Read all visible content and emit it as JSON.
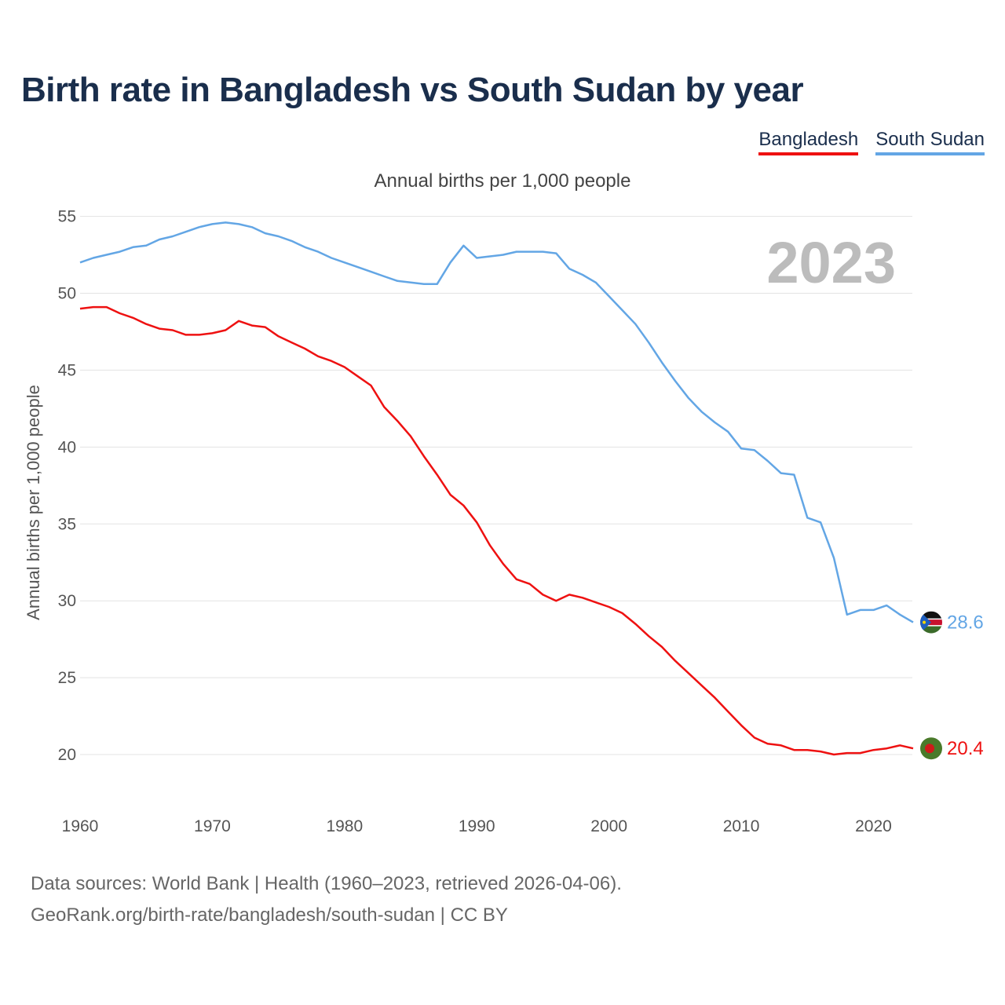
{
  "title": "Birth rate in Bangladesh vs South Sudan by year",
  "subtitle": "Annual births per 1,000 people",
  "legend": [
    {
      "name": "Bangladesh",
      "color": "#ee1111"
    },
    {
      "name": "South Sudan",
      "color": "#63a6e5"
    }
  ],
  "footer": {
    "line1": "Data sources: World Bank | Health (1960–2023, retrieved 2026-04-06).",
    "line2": "GeoRank.org/birth-rate/bangladesh/south-sudan | CC BY"
  },
  "chart_data": {
    "type": "line",
    "title": "Birth rate in Bangladesh vs South Sudan by year",
    "ylabel": "Annual births per 1,000 people",
    "xlabel": "",
    "xlim": [
      1960,
      2023
    ],
    "ylim": [
      17.5,
      56
    ],
    "x_ticks": [
      1960,
      1970,
      1980,
      1990,
      2000,
      2010,
      2020
    ],
    "y_ticks": [
      20,
      25,
      30,
      35,
      40,
      45,
      50,
      55
    ],
    "grid": true,
    "year_label": "2023",
    "x": [
      1960,
      1961,
      1962,
      1963,
      1964,
      1965,
      1966,
      1967,
      1968,
      1969,
      1970,
      1971,
      1972,
      1973,
      1974,
      1975,
      1976,
      1977,
      1978,
      1979,
      1980,
      1981,
      1982,
      1983,
      1984,
      1985,
      1986,
      1987,
      1988,
      1989,
      1990,
      1991,
      1992,
      1993,
      1994,
      1995,
      1996,
      1997,
      1998,
      1999,
      2000,
      2001,
      2002,
      2003,
      2004,
      2005,
      2006,
      2007,
      2008,
      2009,
      2010,
      2011,
      2012,
      2013,
      2014,
      2015,
      2016,
      2017,
      2018,
      2019,
      2020,
      2021,
      2022,
      2023
    ],
    "series": [
      {
        "name": "Bangladesh",
        "color": "#ee1111",
        "end_label": "20.4",
        "values": [
          49.0,
          49.1,
          49.1,
          48.7,
          48.4,
          48.0,
          47.7,
          47.6,
          47.3,
          47.3,
          47.4,
          47.6,
          48.2,
          47.9,
          47.8,
          47.2,
          46.8,
          46.4,
          45.9,
          45.6,
          45.2,
          44.6,
          44.0,
          42.6,
          41.7,
          40.7,
          39.4,
          38.2,
          36.9,
          36.2,
          35.1,
          33.6,
          32.4,
          31.4,
          31.1,
          30.4,
          30.0,
          30.4,
          30.2,
          29.9,
          29.6,
          29.2,
          28.5,
          27.7,
          27.0,
          26.1,
          25.3,
          24.5,
          23.7,
          22.8,
          21.9,
          21.1,
          20.7,
          20.6,
          20.3,
          20.3,
          20.2,
          20.0,
          20.1,
          20.1,
          20.3,
          20.4,
          20.6,
          20.4
        ]
      },
      {
        "name": "South Sudan",
        "color": "#63a6e5",
        "end_label": "28.6",
        "values": [
          52.0,
          52.3,
          52.5,
          52.7,
          53.0,
          53.1,
          53.5,
          53.7,
          54.0,
          54.3,
          54.5,
          54.6,
          54.5,
          54.3,
          53.9,
          53.7,
          53.4,
          53.0,
          52.7,
          52.3,
          52.0,
          51.7,
          51.4,
          51.1,
          50.8,
          50.7,
          50.6,
          50.6,
          52.0,
          53.1,
          52.3,
          52.4,
          52.5,
          52.7,
          52.7,
          52.7,
          52.6,
          51.6,
          51.2,
          50.7,
          49.8,
          48.9,
          48.0,
          46.8,
          45.5,
          44.3,
          43.2,
          42.3,
          41.6,
          41.0,
          39.9,
          39.8,
          39.1,
          38.3,
          38.2,
          35.4,
          35.1,
          32.8,
          29.1,
          29.4,
          29.4,
          29.7,
          29.1,
          28.6
        ]
      }
    ]
  }
}
